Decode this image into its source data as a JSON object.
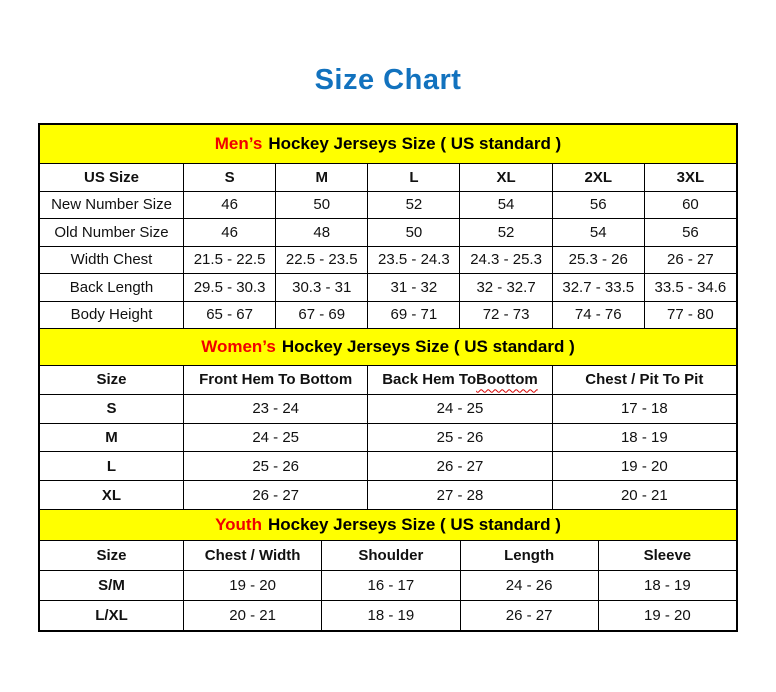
{
  "page": {
    "title": "Size Chart"
  },
  "colors": {
    "title_blue": "#1272BE",
    "band_yellow": "#FFFF00",
    "accent_red": "#F00000",
    "border_black": "#000000",
    "squiggle_red": "#D60000"
  },
  "chart_data": [
    {
      "id": "mens",
      "type": "table",
      "title_highlight": "Men’s",
      "title_rest": "Hockey Jerseys Size ( US standard )",
      "bold_row_labels": false,
      "columns": [
        "US Size",
        "S",
        "M",
        "L",
        "XL",
        "2XL",
        "3XL"
      ],
      "rows": [
        [
          "New Number Size",
          "46",
          "50",
          "52",
          "54",
          "56",
          "60"
        ],
        [
          "Old Number Size",
          "46",
          "48",
          "50",
          "52",
          "54",
          "56"
        ],
        [
          "Width Chest",
          "21.5 - 22.5",
          "22.5 - 23.5",
          "23.5 - 24.3",
          "24.3 - 25.3",
          "25.3 - 26",
          "26 - 27"
        ],
        [
          "Back Length",
          "29.5 - 30.3",
          "30.3 - 31",
          "31 - 32",
          "32 - 32.7",
          "32.7 - 33.5",
          "33.5 - 34.6"
        ],
        [
          "Body Height",
          "65 - 67",
          "67 - 69",
          "69 - 71",
          "72 - 73",
          "74 - 76",
          "77 - 80"
        ]
      ]
    },
    {
      "id": "womens",
      "type": "table",
      "title_highlight": "Women’s",
      "title_rest": "Hockey Jerseys Size ( US standard )",
      "bold_row_labels": true,
      "squiggle_word": "Boottom",
      "columns": [
        "Size",
        "Front Hem To Bottom",
        "Back Hem To Boottom",
        "Chest / Pit To Pit"
      ],
      "rows": [
        [
          "S",
          "23 - 24",
          "24 - 25",
          "17 - 18"
        ],
        [
          "M",
          "24 - 25",
          "25 - 26",
          "18 - 19"
        ],
        [
          "L",
          "25 - 26",
          "26 - 27",
          "19 - 20"
        ],
        [
          "XL",
          "26 - 27",
          "27 - 28",
          "20 - 21"
        ]
      ]
    },
    {
      "id": "youth",
      "type": "table",
      "title_highlight": "Youth",
      "title_rest": "Hockey Jerseys Size ( US standard )",
      "bold_row_labels": true,
      "columns": [
        "Size",
        "Chest / Width",
        "Shoulder",
        "Length",
        "Sleeve"
      ],
      "rows": [
        [
          "S/M",
          "19 - 20",
          "16 - 17",
          "24 - 26",
          "18 - 19"
        ],
        [
          "L/XL",
          "20 - 21",
          "18 - 19",
          "26 - 27",
          "19 - 20"
        ]
      ]
    }
  ]
}
